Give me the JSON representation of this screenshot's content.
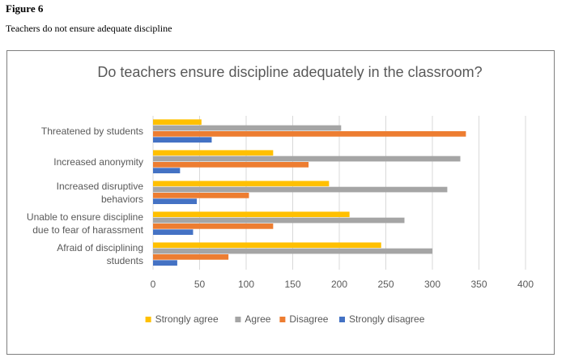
{
  "figure": {
    "label": "Figure 6",
    "caption": "Teachers do not ensure adequate discipline"
  },
  "colors": {
    "strongly_agree": "#FFC000",
    "agree": "#A5A5A5",
    "disagree": "#ED7D31",
    "strongly_disagree": "#4472C4",
    "gridline": "#D9D9D9",
    "text": "#595959"
  },
  "chart_data": {
    "type": "bar",
    "orientation": "horizontal",
    "title": "Do teachers ensure discipline adequately in the classroom?",
    "categories": [
      "Threatened by students",
      "Increased anonymity",
      "Increased disruptive behaviors",
      "Unable to ensure discipline due to fear of harassment",
      "Afraid of disciplining students"
    ],
    "category_lines": [
      [
        "Threatened by students"
      ],
      [
        "Increased anonymity"
      ],
      [
        "Increased disruptive",
        "behaviors"
      ],
      [
        "Unable to ensure discipline",
        "due to fear of harassment"
      ],
      [
        "Afraid of disciplining",
        "students"
      ]
    ],
    "series": [
      {
        "name": "Strongly agree",
        "color": "#FFC000",
        "values": [
          52,
          129,
          189,
          211,
          245
        ]
      },
      {
        "name": "Agree",
        "color": "#A5A5A5",
        "values": [
          202,
          330,
          316,
          270,
          300
        ]
      },
      {
        "name": "Disagree",
        "color": "#ED7D31",
        "values": [
          336,
          167,
          103,
          129,
          81
        ]
      },
      {
        "name": "Strongly disagree",
        "color": "#4472C4",
        "values": [
          63,
          29,
          47,
          43,
          26
        ]
      }
    ],
    "xticks": [
      0,
      50,
      100,
      150,
      200,
      250,
      300,
      350,
      400
    ],
    "xlim": [
      0,
      400
    ],
    "grid": true,
    "legend": "bottom"
  }
}
